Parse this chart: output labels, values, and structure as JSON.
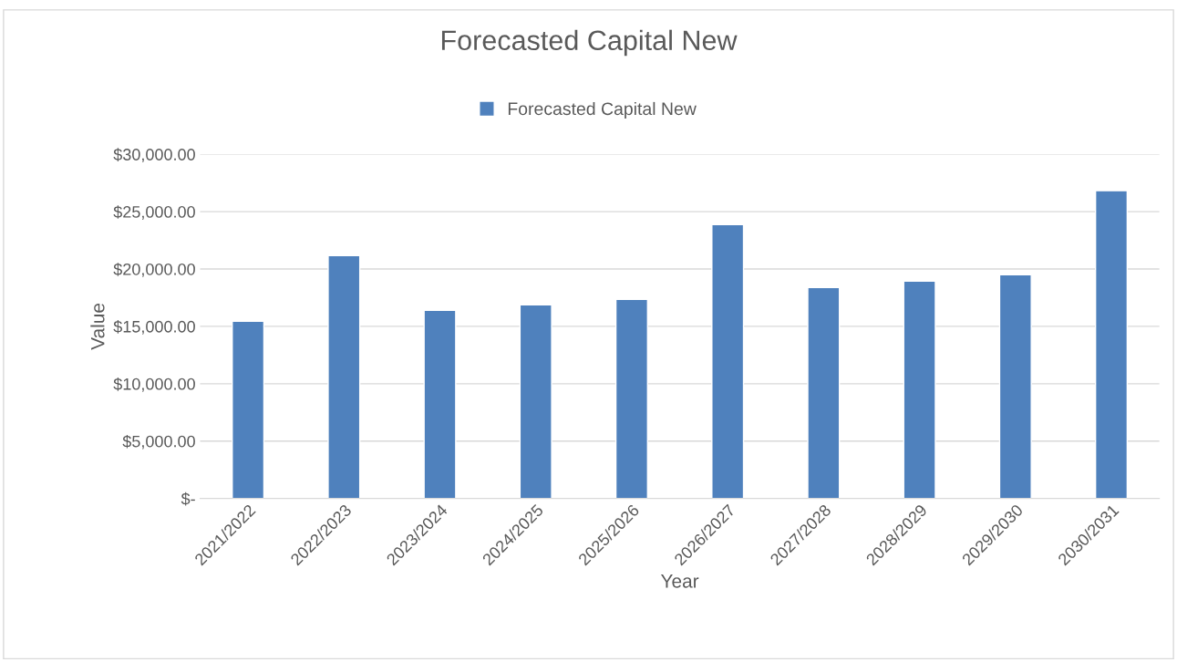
{
  "chart_data": {
    "type": "bar",
    "title": "Forecasted Capital New",
    "xlabel": "Year",
    "ylabel": "Value",
    "categories": [
      "2021/2022",
      "2022/2023",
      "2023/2024",
      "2024/2025",
      "2025/2026",
      "2026/2027",
      "2027/2028",
      "2028/2029",
      "2029/2030",
      "2030/2031"
    ],
    "series": [
      {
        "name": "Forecasted Capital New",
        "color": "#4f81bd",
        "values": [
          15450,
          21170,
          16390,
          16870,
          17350,
          23870,
          18380,
          18940,
          19500,
          26820
        ]
      }
    ],
    "ylim": [
      0,
      30000
    ],
    "yticks": [
      {
        "value": 0,
        "label": "$-"
      },
      {
        "value": 5000,
        "label": "$5,000.00"
      },
      {
        "value": 10000,
        "label": "$10,000.00"
      },
      {
        "value": 15000,
        "label": "$15,000.00"
      },
      {
        "value": 20000,
        "label": "$20,000.00"
      },
      {
        "value": 25000,
        "label": "$25,000.00"
      },
      {
        "value": 30000,
        "label": "$30,000.00"
      }
    ],
    "grid": "y",
    "legend": "top"
  }
}
